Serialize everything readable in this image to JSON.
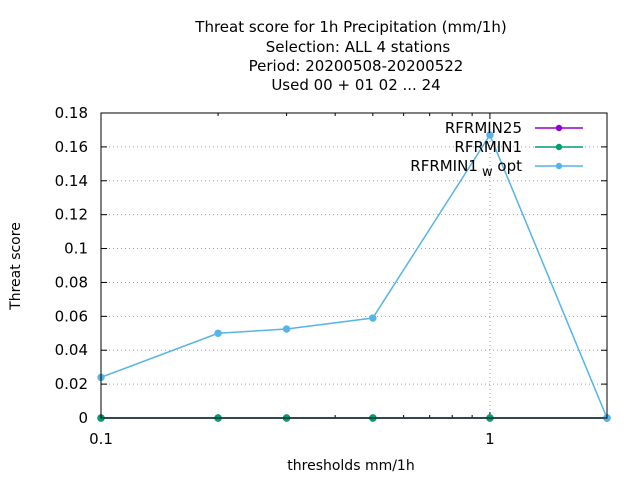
{
  "chart_data": {
    "type": "line",
    "title_lines": [
      "Threat score  for 1h Precipitation (mm/1h)",
      "Selection: ALL      4 stations",
      "Period: 20200508-20200522",
      "Used  00 + 01 02 ... 24"
    ],
    "xlabel": "thresholds mm/1h",
    "ylabel": "Threat score",
    "x_scale": "log",
    "xlim": [
      0.1,
      2
    ],
    "ylim": [
      0,
      0.18
    ],
    "x_ticks": [
      {
        "value": 0.1,
        "label": "0.1"
      },
      {
        "value": 1,
        "label": "1"
      }
    ],
    "y_ticks": [
      {
        "value": 0,
        "label": "0"
      },
      {
        "value": 0.02,
        "label": "0.02"
      },
      {
        "value": 0.04,
        "label": "0.04"
      },
      {
        "value": 0.06,
        "label": "0.06"
      },
      {
        "value": 0.08,
        "label": "0.08"
      },
      {
        "value": 0.1,
        "label": "0.1"
      },
      {
        "value": 0.12,
        "label": "0.12"
      },
      {
        "value": 0.14,
        "label": "0.14"
      },
      {
        "value": 0.16,
        "label": "0.16"
      },
      {
        "value": 0.18,
        "label": "0.18"
      }
    ],
    "grid": true,
    "legend_position": "top-right",
    "x": [
      0.1,
      0.2,
      0.3,
      0.5,
      1.0,
      2.0
    ],
    "series": [
      {
        "name": "RFRMIN25",
        "legend_main": "RFRMIN25",
        "legend_sub": "",
        "legend_tail": "",
        "color": "#9400d3",
        "values": [
          0,
          0,
          0,
          0,
          0,
          0
        ]
      },
      {
        "name": "RFRMIN1",
        "legend_main": "RFRMIN1",
        "legend_sub": "",
        "legend_tail": "",
        "color": "#009e73",
        "values": [
          0,
          0,
          0,
          0,
          0,
          0
        ]
      },
      {
        "name": "RFRMIN1_w_opt",
        "legend_main": "RFRMIN1",
        "legend_sub": "w",
        "legend_tail": "opt",
        "color": "#56b4e9",
        "values": [
          0.024,
          0.05,
          0.0525,
          0.059,
          0.167,
          0.0
        ]
      }
    ]
  }
}
